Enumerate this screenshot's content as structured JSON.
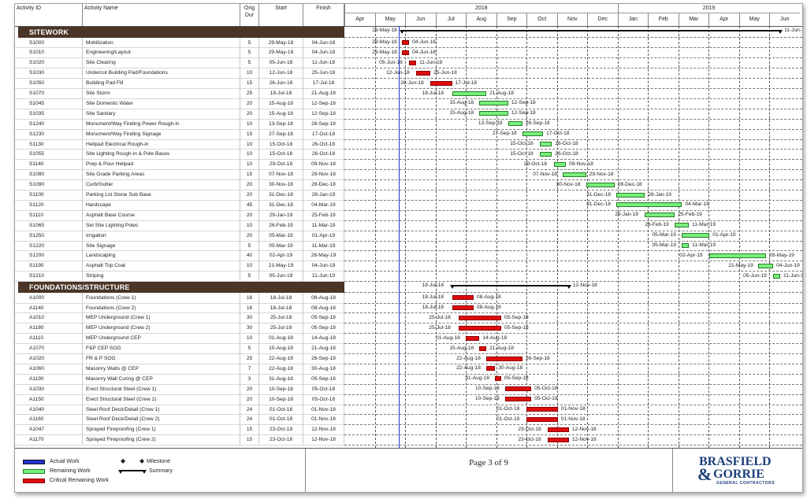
{
  "headers": {
    "activity_id": "Activity ID",
    "activity_name": "Activity Name",
    "orig_dur": "Orig Dur",
    "start": "Start",
    "finish": "Finish"
  },
  "timeline": {
    "years": [
      {
        "label": "2018"
      },
      {
        "label": "2019"
      }
    ],
    "months": [
      "Apr",
      "May",
      "Jun",
      "Jul",
      "Aug",
      "Sep",
      "Oct",
      "Nov",
      "Dec",
      "Jan",
      "Feb",
      "Mar",
      "Apr",
      "May",
      "Jun"
    ]
  },
  "sections": [
    {
      "title": "SITEWORK",
      "summary_start": "29-May-18",
      "summary_finish": "11-Jun-19"
    },
    {
      "title": "FOUNDATIONS/STRUCTURE",
      "summary_start": "18-Jul-18",
      "summary_finish": "12-Nov-18"
    }
  ],
  "activities": [
    {
      "id": "S1000",
      "name": "Mobilization",
      "dur": "5",
      "start": "29-May-18",
      "finish": "04-Jun-18",
      "type": "red"
    },
    {
      "id": "S1010",
      "name": "Engineering/Layout",
      "dur": "5",
      "start": "29-May-18",
      "finish": "04-Jun-18",
      "type": "red"
    },
    {
      "id": "S1020",
      "name": "Site Clearing",
      "dur": "5",
      "start": "05-Jun-18",
      "finish": "11-Jun-18",
      "type": "red"
    },
    {
      "id": "S1030",
      "name": "Undercut Building Pad/Foundations",
      "dur": "10",
      "start": "12-Jun-18",
      "finish": "25-Jun-18",
      "type": "red"
    },
    {
      "id": "S1050",
      "name": "Building Pad Fill",
      "dur": "15",
      "start": "26-Jun-18",
      "finish": "17-Jul-18",
      "type": "red"
    },
    {
      "id": "S1070",
      "name": "Site Storm",
      "dur": "25",
      "start": "18-Jul-18",
      "finish": "21-Aug-18",
      "type": "green"
    },
    {
      "id": "S1045",
      "name": "Site Domestic Water",
      "dur": "20",
      "start": "15-Aug-18",
      "finish": "12-Sep-18",
      "type": "green"
    },
    {
      "id": "S1035",
      "name": "Site Sanitary",
      "dur": "20",
      "start": "15-Aug-18",
      "finish": "12-Sep-18",
      "type": "green"
    },
    {
      "id": "S1240",
      "name": "Monument/Way Finding Power Rough-in",
      "dur": "10",
      "start": "13-Sep-18",
      "finish": "26-Sep-18",
      "type": "green"
    },
    {
      "id": "S1230",
      "name": "Monument/Way Finding Signage",
      "dur": "15",
      "start": "27-Sep-18",
      "finish": "17-Oct-18",
      "type": "green"
    },
    {
      "id": "S1130",
      "name": "Helipad Electrical Rough-in",
      "dur": "10",
      "start": "15-Oct-18",
      "finish": "26-Oct-18",
      "type": "green"
    },
    {
      "id": "S1055",
      "name": "Site Lighting Rough-in & Pole Bases",
      "dur": "10",
      "start": "15-Oct-18",
      "finish": "26-Oct-18",
      "type": "green"
    },
    {
      "id": "S1140",
      "name": "Prep & Pour Helipad",
      "dur": "10",
      "start": "29-Oct-18",
      "finish": "09-Nov-18",
      "type": "green"
    },
    {
      "id": "S1080",
      "name": "Site Grade Parking Areas",
      "dur": "15",
      "start": "07-Nov-18",
      "finish": "29-Nov-18",
      "type": "green"
    },
    {
      "id": "S1090",
      "name": "Curb/Gutter",
      "dur": "20",
      "start": "30-Nov-18",
      "finish": "28-Dec-18",
      "type": "green"
    },
    {
      "id": "S1100",
      "name": "Parking Lot Stone Sub Base",
      "dur": "20",
      "start": "31-Dec-18",
      "finish": "28-Jan-19",
      "type": "green"
    },
    {
      "id": "S1120",
      "name": "Hardscape",
      "dur": "45",
      "start": "31-Dec-18",
      "finish": "04-Mar-19",
      "type": "green"
    },
    {
      "id": "S1110",
      "name": "Asphalt Base Course",
      "dur": "20",
      "start": "29-Jan-19",
      "finish": "25-Feb-19",
      "type": "green"
    },
    {
      "id": "S1065",
      "name": "Set Site Lighting Poles",
      "dur": "10",
      "start": "26-Feb-19",
      "finish": "11-Mar-19",
      "type": "green"
    },
    {
      "id": "S1250",
      "name": "Irrigation",
      "dur": "20",
      "start": "05-Mar-19",
      "finish": "01-Apr-19",
      "type": "green"
    },
    {
      "id": "S1220",
      "name": "Site Signage",
      "dur": "5",
      "start": "05-Mar-19",
      "finish": "11-Mar-19",
      "type": "green"
    },
    {
      "id": "S1200",
      "name": "Landscaping",
      "dur": "40",
      "start": "02-Apr-19",
      "finish": "28-May-19",
      "type": "green"
    },
    {
      "id": "S1190",
      "name": "Asphalt Top Coat",
      "dur": "10",
      "start": "21-May-19",
      "finish": "04-Jun-19",
      "type": "green"
    },
    {
      "id": "S1210",
      "name": "Striping",
      "dur": "5",
      "start": "05-Jun-19",
      "finish": "11-Jun-19",
      "type": "green"
    },
    {
      "id": "A1000",
      "name": "Foundations (Crew 1)",
      "dur": "16",
      "start": "18-Jul-18",
      "finish": "08-Aug-18",
      "type": "red"
    },
    {
      "id": "A1140",
      "name": "Foundations (Crew 2)",
      "dur": "16",
      "start": "18-Jul-18",
      "finish": "08-Aug-18",
      "type": "red"
    },
    {
      "id": "A1010",
      "name": "MEP Underground (Crew 1)",
      "dur": "30",
      "start": "25-Jul-18",
      "finish": "05-Sep-18",
      "type": "red"
    },
    {
      "id": "A1180",
      "name": "MEP Underground (Crew 2)",
      "dur": "30",
      "start": "25-Jul-18",
      "finish": "05-Sep-18",
      "type": "red"
    },
    {
      "id": "A1110",
      "name": "MEP Underground CEP",
      "dur": "10",
      "start": "01-Aug-18",
      "finish": "14-Aug-18",
      "type": "red"
    },
    {
      "id": "A1070",
      "name": "F&P CEP SOG",
      "dur": "5",
      "start": "15-Aug-18",
      "finish": "21-Aug-18",
      "type": "red"
    },
    {
      "id": "A1020",
      "name": "FR & P SOG",
      "dur": "25",
      "start": "22-Aug-18",
      "finish": "26-Sep-18",
      "type": "red"
    },
    {
      "id": "A1060",
      "name": "Masonry Walls @ CEP",
      "dur": "7",
      "start": "22-Aug-18",
      "finish": "30-Aug-18",
      "type": "red"
    },
    {
      "id": "A1190",
      "name": "Masonry Wall Curing @ CEP",
      "dur": "3",
      "start": "31-Aug-18",
      "finish": "05-Sep-18",
      "type": "red"
    },
    {
      "id": "A1030",
      "name": "Erect Structural Steel (Crew 1)",
      "dur": "20",
      "start": "10-Sep-18",
      "finish": "05-Oct-18",
      "type": "red"
    },
    {
      "id": "A1150",
      "name": "Erect Structural Steel (Crew 2)",
      "dur": "20",
      "start": "10-Sep-18",
      "finish": "05-Oct-18",
      "type": "red"
    },
    {
      "id": "A1040",
      "name": "Steel Roof Deck/Detail (Crew 1)",
      "dur": "24",
      "start": "01-Oct-18",
      "finish": "01-Nov-18",
      "type": "red"
    },
    {
      "id": "A1160",
      "name": "Steel Roof Deck/Detail (Crew 2)",
      "dur": "24",
      "start": "01-Oct-18",
      "finish": "01-Nov-18",
      "type": "red"
    },
    {
      "id": "A1047",
      "name": "Sprayed Fireproofing (Crew 1)",
      "dur": "15",
      "start": "23-Oct-18",
      "finish": "12-Nov-18",
      "type": "red"
    },
    {
      "id": "A1170",
      "name": "Sprayed Fireproofing (Crew 2)",
      "dur": "15",
      "start": "23-Oct-18",
      "finish": "12-Nov-18",
      "type": "red"
    }
  ],
  "legend": {
    "actual_work": "Actual Work",
    "remaining_work": "Remaining Work",
    "critical_remaining_work": "Critical Remaining Work",
    "milestone": "Milestone",
    "summary": "Summary"
  },
  "footer": {
    "page": "Page 3 of 9"
  },
  "logo": {
    "line1": "BRASFIELD",
    "amp": "&",
    "line2": "GORRIE",
    "tagline": "GENERAL CONTRACTORS"
  },
  "colors": {
    "section_bg": "#4a3527",
    "critical": "#dd0d0d",
    "remaining": "#77f07a",
    "actual": "#2233cc",
    "logo": "#1d3f7a"
  }
}
